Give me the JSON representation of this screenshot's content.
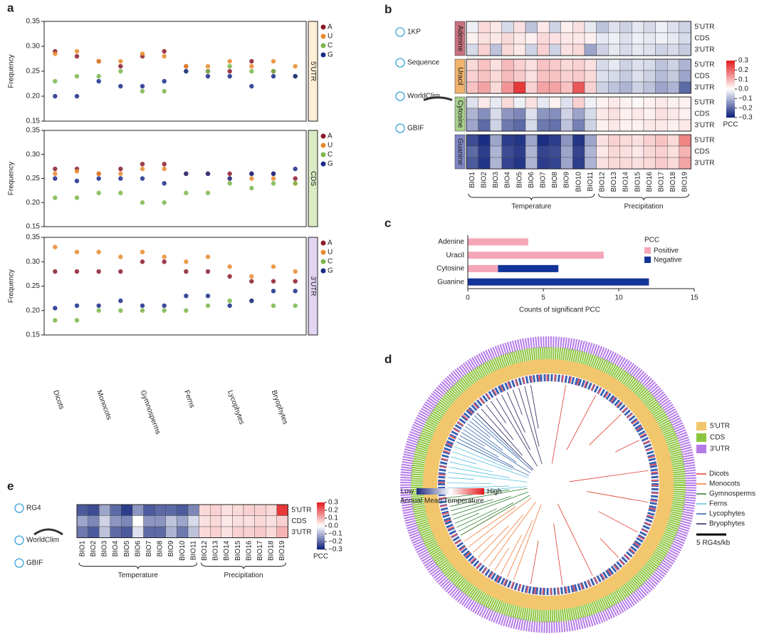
{
  "panel_letters": [
    "a",
    "b",
    "c",
    "d",
    "e"
  ],
  "chart_data": [
    {
      "type": "scatter",
      "strip": "5'UTR",
      "strip_color": "#fcefd6",
      "ylabel": "Frequency",
      "ylim": [
        0.15,
        0.35
      ],
      "yticks": [
        0.15,
        {
          "value": 0.2,
          "label": "0.20"
        },
        0.25,
        {
          "value": 0.3,
          "label": "0.30"
        },
        0.35
      ],
      "series": [
        {
          "name": "A",
          "color": "#8b1a2b",
          "values": [
            0.29,
            0.28,
            0.27,
            0.26,
            0.28,
            0.29,
            0.26,
            0.25,
            0.25,
            0.27,
            0.25,
            0.24
          ]
        },
        {
          "name": "U",
          "color": "#e8892c",
          "values": [
            0.285,
            0.29,
            0.27,
            0.27,
            0.285,
            0.28,
            0.26,
            0.26,
            0.27,
            0.26,
            0.27,
            0.26
          ]
        },
        {
          "name": "C",
          "color": "#7ab648",
          "values": [
            0.23,
            0.24,
            0.24,
            0.25,
            0.21,
            0.21,
            0.25,
            0.25,
            0.26,
            0.25,
            0.25,
            0.24
          ]
        },
        {
          "name": "G",
          "color": "#1a2a8a",
          "values": [
            0.2,
            0.2,
            0.23,
            0.22,
            0.22,
            0.23,
            0.25,
            0.24,
            0.24,
            0.22,
            0.24,
            0.24
          ]
        }
      ]
    },
    {
      "type": "scatter",
      "strip": "CDS",
      "strip_color": "#d9ecc4",
      "ylabel": "Frequency",
      "ylim": [
        0.15,
        0.35
      ],
      "yticks": [
        0.15,
        {
          "value": 0.2,
          "label": "0.20"
        },
        0.25,
        {
          "value": 0.3,
          "label": "0.30"
        },
        0.35
      ],
      "series": [
        {
          "name": "A",
          "color": "#8b1a2b",
          "values": [
            0.27,
            0.27,
            0.26,
            0.27,
            0.28,
            0.28,
            0.26,
            0.26,
            0.26,
            0.26,
            0.26,
            0.25
          ]
        },
        {
          "name": "U",
          "color": "#e8892c",
          "values": [
            0.26,
            0.265,
            0.26,
            0.26,
            0.27,
            0.27,
            0.26,
            0.26,
            0.25,
            0.25,
            0.25,
            0.24
          ]
        },
        {
          "name": "C",
          "color": "#7ab648",
          "values": [
            0.21,
            0.21,
            0.22,
            0.22,
            0.2,
            0.2,
            0.22,
            0.22,
            0.24,
            0.23,
            0.24,
            0.24
          ]
        },
        {
          "name": "G",
          "color": "#1a2a8a",
          "values": [
            0.25,
            0.245,
            0.25,
            0.25,
            0.25,
            0.24,
            0.26,
            0.26,
            0.25,
            0.26,
            0.26,
            0.27
          ]
        }
      ]
    },
    {
      "type": "scatter",
      "strip": "3'UTR",
      "strip_color": "#e3d4f2",
      "ylabel": "Frequency",
      "ylim": [
        0.15,
        0.35
      ],
      "yticks": [
        0.15,
        {
          "value": 0.2,
          "label": "0.20"
        },
        0.25,
        {
          "value": 0.3,
          "label": "0.30"
        },
        0.35
      ],
      "categories": [
        "Dicots",
        null,
        "Monocots",
        null,
        "Gymnosperms",
        null,
        "Ferns",
        null,
        "Lycophytes",
        null,
        "Bryophytes",
        null
      ],
      "series": [
        {
          "name": "A",
          "color": "#8b1a2b",
          "values": [
            0.28,
            0.28,
            0.28,
            0.28,
            0.3,
            0.3,
            0.28,
            0.28,
            0.27,
            0.26,
            0.26,
            0.26
          ]
        },
        {
          "name": "U",
          "color": "#e8892c",
          "values": [
            0.33,
            0.32,
            0.32,
            0.31,
            0.32,
            0.31,
            0.3,
            0.31,
            0.29,
            0.27,
            0.29,
            0.28
          ]
        },
        {
          "name": "C",
          "color": "#7ab648",
          "values": [
            0.18,
            0.18,
            0.2,
            0.2,
            0.2,
            0.2,
            0.2,
            0.21,
            0.22,
            0.22,
            0.21,
            0.21
          ]
        },
        {
          "name": "G",
          "color": "#1a2a8a",
          "values": [
            0.205,
            0.21,
            0.21,
            0.22,
            0.21,
            0.21,
            0.23,
            0.23,
            0.21,
            0.22,
            0.24,
            0.24
          ]
        }
      ]
    },
    {
      "type": "heatmap",
      "icons": [
        "1KP",
        "Sequence",
        "WorldClim",
        "GBIF"
      ],
      "columns": [
        "BIO1",
        "BIO2",
        "BIO3",
        "BIO4",
        "BIO5",
        "BIO6",
        "BIO7",
        "BIO8",
        "BIO9",
        "BIO10",
        "BIO11",
        "BIO12",
        "BIO13",
        "BIO14",
        "BIO15",
        "BIO16",
        "BIO17",
        "BIO18",
        "BIO19"
      ],
      "rows": [
        "5'UTR",
        "CDS",
        "3'UTR"
      ],
      "column_groups": [
        "Temperature",
        "Precipitation"
      ],
      "groups": [
        {
          "name": "Adenine",
          "color": "#c9707e",
          "values": [
            [
              -0.02,
              0.05,
              0.03,
              -0.05,
              0.04,
              -0.08,
              0.03,
              -0.06,
              0.02,
              0.04,
              -0.03,
              -0.08,
              -0.04,
              -0.06,
              -0.03,
              -0.05,
              -0.02,
              -0.04,
              -0.06
            ],
            [
              0.02,
              0.04,
              0.03,
              0.05,
              0.03,
              0.02,
              0.05,
              0.04,
              0.03,
              0.03,
              0.02,
              -0.03,
              -0.02,
              -0.04,
              -0.02,
              -0.03,
              -0.02,
              -0.03,
              -0.05
            ],
            [
              -0.05,
              0.06,
              -0.08,
              0.05,
              0.03,
              -0.06,
              0.06,
              -0.06,
              0.04,
              0.05,
              -0.12,
              -0.06,
              -0.03,
              -0.05,
              -0.03,
              -0.04,
              -0.06,
              -0.05,
              -0.07
            ]
          ]
        },
        {
          "name": "Uracil",
          "color": "#f0b36c",
          "values": [
            [
              0.05,
              0.08,
              0.04,
              0.09,
              0.06,
              0.04,
              0.08,
              0.07,
              0.05,
              0.06,
              0.04,
              -0.05,
              -0.03,
              -0.06,
              -0.04,
              -0.05,
              -0.08,
              -0.06,
              -0.1
            ],
            [
              0.06,
              0.08,
              0.05,
              0.09,
              0.07,
              0.04,
              0.08,
              0.08,
              0.06,
              0.07,
              0.05,
              -0.04,
              -0.05,
              -0.07,
              -0.04,
              -0.06,
              -0.09,
              -0.07,
              -0.12
            ],
            [
              0.08,
              0.12,
              0.05,
              0.14,
              0.26,
              0.06,
              0.12,
              0.12,
              0.08,
              0.22,
              0.06,
              -0.06,
              -0.08,
              -0.1,
              -0.06,
              -0.08,
              -0.12,
              -0.1,
              -0.2
            ]
          ]
        },
        {
          "name": "Cytosine",
          "color": "#a8d08d",
          "values": [
            [
              -0.04,
              0.03,
              -0.03,
              0.05,
              -0.02,
              0.04,
              -0.03,
              0.02,
              -0.04,
              0.06,
              -0.02,
              0.02,
              0.03,
              0.02,
              0.01,
              0.02,
              0.03,
              0.02,
              0.02
            ],
            [
              -0.1,
              -0.15,
              -0.05,
              -0.14,
              -0.16,
              -0.04,
              -0.14,
              -0.15,
              -0.06,
              -0.12,
              -0.05,
              0.03,
              0.04,
              0.02,
              0.03,
              0.02,
              0.04,
              0.03,
              0.02
            ],
            [
              -0.12,
              -0.2,
              -0.06,
              -0.18,
              -0.2,
              -0.05,
              -0.18,
              -0.19,
              -0.08,
              -0.17,
              -0.06,
              0.02,
              0.03,
              0.02,
              0.02,
              0.03,
              0.03,
              0.02,
              0.03
            ]
          ]
        },
        {
          "name": "Guanine",
          "color": "#7f86c4",
          "values": [
            [
              -0.24,
              -0.28,
              -0.12,
              -0.26,
              -0.27,
              -0.12,
              -0.28,
              -0.26,
              -0.14,
              -0.27,
              -0.12,
              0.04,
              0.06,
              0.05,
              0.04,
              0.06,
              0.08,
              0.05,
              0.16
            ],
            [
              -0.2,
              -0.26,
              -0.1,
              -0.24,
              -0.26,
              -0.1,
              -0.25,
              -0.24,
              -0.12,
              -0.25,
              -0.1,
              0.03,
              0.05,
              0.04,
              0.03,
              0.05,
              0.06,
              0.04,
              0.1
            ],
            [
              -0.22,
              -0.27,
              -0.1,
              -0.25,
              -0.27,
              -0.1,
              -0.26,
              -0.25,
              -0.12,
              -0.26,
              -0.1,
              0.04,
              0.05,
              0.05,
              0.04,
              0.05,
              0.07,
              0.05,
              0.12
            ]
          ]
        }
      ],
      "colorbar": {
        "title": "PCC",
        "lim": [
          -0.3,
          0.3
        ],
        "colors": [
          "#0b1f7a",
          "#ffffff",
          "#e31a1c"
        ],
        "ticks": [
          0.3,
          0.2,
          0.1,
          {
            "value": 0,
            "label": "0.0"
          },
          {
            "value": -0.1,
            "label": "−0.1"
          },
          {
            "value": -0.2,
            "label": "−0.2"
          },
          {
            "value": -0.3,
            "label": "−0.3"
          }
        ]
      }
    },
    {
      "type": "stacked_hbar",
      "categories": [
        "Adenine",
        "Uracil",
        "Cytosine",
        "Guanine"
      ],
      "category_colors": [
        "#8b1a2b",
        "#e8892c",
        "#7ab648",
        "#1a2a8a"
      ],
      "legend_title": "PCC",
      "series": [
        {
          "name": "Positive",
          "color": "#f4a6b7",
          "values": [
            4,
            9,
            2,
            0
          ]
        },
        {
          "name": "Negative",
          "color": "#12349a",
          "values": [
            0,
            0,
            4,
            12
          ]
        }
      ],
      "xlabel": "Counts of significant PCC",
      "xlim": [
        0,
        15
      ],
      "xticks": [
        0,
        5,
        10,
        15
      ]
    },
    {
      "type": "heatmap",
      "icons": [
        "RG4",
        "WorldClim",
        "GBIF"
      ],
      "columns": [
        "BIO1",
        "BIO2",
        "BIO3",
        "BIO4",
        "BIO5",
        "BIO6",
        "BIO7",
        "BIO8",
        "BIO9",
        "BIO10",
        "BIO11",
        "BIO12",
        "BIO13",
        "BIO14",
        "BIO15",
        "BIO16",
        "BIO17",
        "BIO18",
        "BIO19"
      ],
      "rows": [
        "5'UTR",
        "CDS",
        "3'UTR"
      ],
      "column_groups": [
        "Temperature",
        "Precipitation"
      ],
      "groups": [
        {
          "values": [
            [
              -0.22,
              -0.24,
              -0.12,
              -0.2,
              -0.26,
              -0.14,
              -0.22,
              -0.2,
              -0.2,
              -0.22,
              -0.16,
              0.05,
              0.06,
              0.04,
              0.05,
              0.06,
              0.06,
              0.05,
              0.26
            ],
            [
              -0.12,
              -0.16,
              -0.06,
              -0.14,
              -0.16,
              0,
              -0.14,
              -0.14,
              -0.08,
              -0.12,
              -0.05,
              0.04,
              0.05,
              0.03,
              0.04,
              0.04,
              0.05,
              0.04,
              0.06
            ],
            [
              -0.18,
              -0.22,
              -0.08,
              -0.2,
              -0.22,
              -0.04,
              -0.2,
              -0.2,
              -0.1,
              -0.18,
              -0.08,
              0.05,
              0.06,
              0.04,
              0.06,
              0.06,
              0.07,
              0.05,
              0.1
            ]
          ]
        }
      ],
      "colorbar": {
        "title": "PCC",
        "lim": [
          -0.3,
          0.3
        ],
        "colors": [
          "#0b1f7a",
          "#ffffff",
          "#e31a1c"
        ],
        "ticks": [
          0.3,
          0.2,
          0.1,
          {
            "value": 0,
            "label": "0.0"
          },
          {
            "value": -0.1,
            "label": "−0.1"
          },
          {
            "value": -0.2,
            "label": "−0.2"
          },
          {
            "value": -0.3,
            "label": "−0.3"
          }
        ]
      }
    }
  ],
  "tree": {
    "ring_legend": [
      {
        "name": "5'UTR",
        "color": "#f2c66d"
      },
      {
        "name": "CDS",
        "color": "#8cc63f"
      },
      {
        "name": "3'UTR",
        "color": "#b57be8"
      }
    ],
    "clades": [
      {
        "name": "Dicots",
        "color": "#e03a2e"
      },
      {
        "name": "Monocots",
        "color": "#f07b3a"
      },
      {
        "name": "Gymnosperms",
        "color": "#2e7d32"
      },
      {
        "name": "Ferns",
        "color": "#5bc0de"
      },
      {
        "name": "Lycophytes",
        "color": "#2c5fa8"
      },
      {
        "name": "Bryophytes",
        "color": "#27235e"
      }
    ],
    "gradient": {
      "low": "Low",
      "high": "High",
      "title": "Annual Mean Temperature"
    },
    "scale": "5 RG4s/kb"
  }
}
